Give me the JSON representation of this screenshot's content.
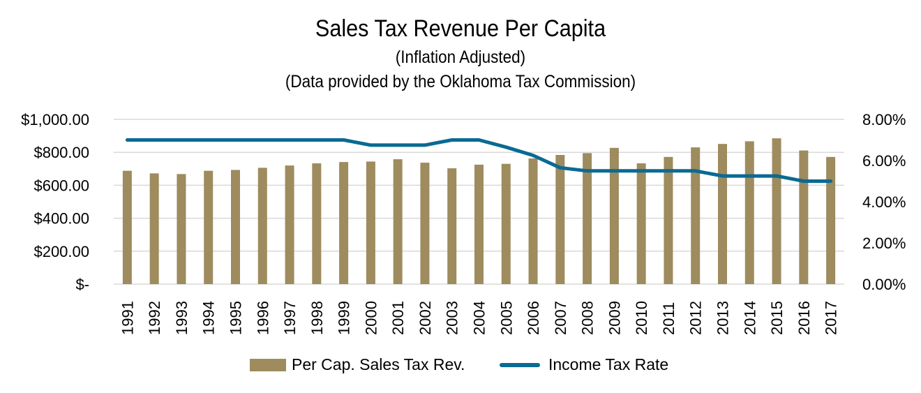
{
  "title": "Sales Tax Revenue Per Capita",
  "subtitle1": "(Inflation Adjusted)",
  "subtitle2": "(Data provided by the Oklahoma Tax Commission)",
  "colors": {
    "bar": "#9e8b5e",
    "line": "#0a6a93",
    "grid": "#d9d9d9"
  },
  "chart_data": {
    "type": "bar+line",
    "categories": [
      "1991",
      "1992",
      "1993",
      "1994",
      "1995",
      "1996",
      "1997",
      "1998",
      "1999",
      "2000",
      "2001",
      "2002",
      "2003",
      "2004",
      "2005",
      "2006",
      "2007",
      "2008",
      "2009",
      "2010",
      "2011",
      "2012",
      "2013",
      "2014",
      "2015",
      "2016",
      "2017"
    ],
    "series": [
      {
        "name": "Per Cap. Sales Tax Rev.",
        "type": "bar",
        "axis": "left",
        "values": [
          688,
          672,
          668,
          688,
          693,
          706,
          720,
          733,
          741,
          744,
          758,
          737,
          703,
          725,
          730,
          763,
          784,
          795,
          827,
          733,
          772,
          830,
          851,
          867,
          885,
          811,
          772
        ]
      },
      {
        "name": "Income Tax Rate",
        "type": "line",
        "axis": "right",
        "values": [
          7.0,
          7.0,
          7.0,
          7.0,
          7.0,
          7.0,
          7.0,
          7.0,
          7.0,
          6.75,
          6.75,
          6.75,
          7.0,
          7.0,
          6.65,
          6.25,
          5.65,
          5.5,
          5.5,
          5.5,
          5.5,
          5.5,
          5.25,
          5.25,
          5.25,
          5.0,
          5.0
        ]
      }
    ],
    "left_axis": {
      "ylim": [
        0,
        1000
      ],
      "ticks": [
        0,
        200,
        400,
        600,
        800,
        1000
      ],
      "tick_labels": [
        "$-",
        "$200.00",
        "$400.00",
        "$600.00",
        "$800.00",
        "$1,000.00"
      ]
    },
    "right_axis": {
      "ylim": [
        0,
        8
      ],
      "ticks": [
        0,
        2,
        4,
        6,
        8
      ],
      "tick_labels": [
        "0.00%",
        "2.00%",
        "4.00%",
        "6.00%",
        "8.00%"
      ]
    },
    "grid": true,
    "legend_position": "bottom"
  }
}
